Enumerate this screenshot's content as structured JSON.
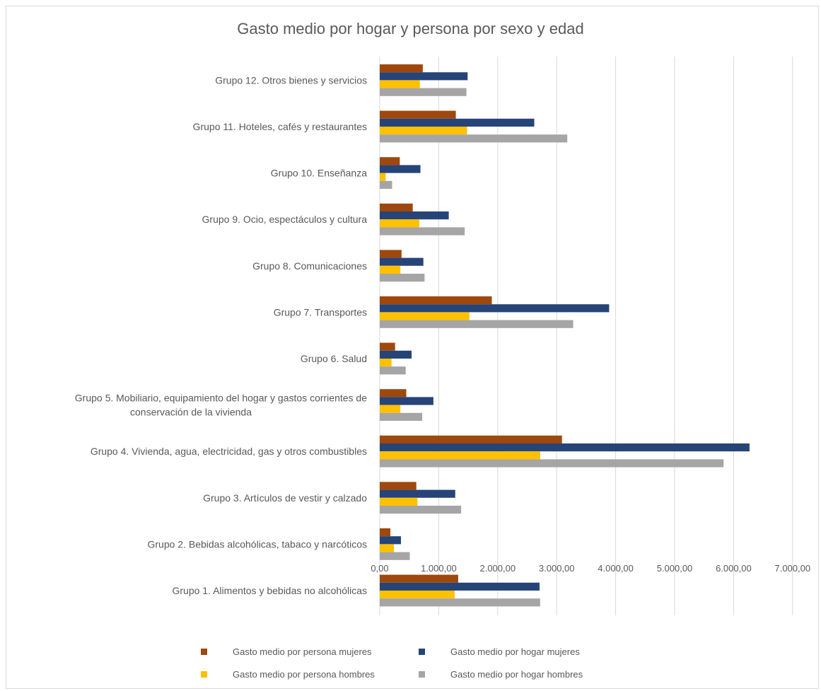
{
  "chart_data": {
    "type": "bar",
    "orientation": "horizontal",
    "title": "Gasto medio por hogar y persona por sexo y edad",
    "xlabel": "",
    "ylabel": "",
    "xlim": [
      0,
      7000
    ],
    "x_ticks": [
      "0,00",
      "1.000,00",
      "2.000,00",
      "3.000,00",
      "4.000,00",
      "5.000,00",
      "6.000,00",
      "7.000,00"
    ],
    "grid": true,
    "legend_position": "bottom",
    "categories": [
      "Grupo 12. Otros bienes y servicios",
      "Grupo 11. Hoteles, cafés y restaurantes",
      "Grupo 10. Enseñanza",
      "Grupo 9. Ocio, espectáculos y cultura",
      "Grupo 8. Comunicaciones",
      "Grupo 7. Transportes",
      "Grupo 6. Salud",
      "Grupo 5. Mobiliario, equipamiento del hogar y gastos corrientes de conservación de la vivienda",
      "Grupo 4. Vivienda, agua, electricidad, gas y otros combustibles",
      "Grupo 3. Artículos de vestir y calzado",
      "Grupo 2. Bebidas alcohólicas, tabaco y narcóticos",
      "Grupo 1. Alimentos y bebidas no alcohólicas"
    ],
    "category_lines": [
      [
        "Grupo 12. Otros bienes y servicios"
      ],
      [
        "Grupo 11. Hoteles, cafés y restaurantes"
      ],
      [
        "Grupo 10. Enseñanza"
      ],
      [
        "Grupo 9. Ocio, espectáculos y cultura"
      ],
      [
        "Grupo 8. Comunicaciones"
      ],
      [
        "Grupo 7. Transportes"
      ],
      [
        "Grupo 6. Salud"
      ],
      [
        "Grupo 5. Mobiliario, equipamiento del hogar y gastos corrientes de",
        "conservación de la vivienda"
      ],
      [
        "Grupo 4. Vivienda, agua, electricidad, gas y otros combustibles"
      ],
      [
        "Grupo 3. Artículos de vestir y calzado"
      ],
      [
        "Grupo 2. Bebidas alcohólicas, tabaco y narcóticos"
      ],
      [
        "Grupo 1. Alimentos y bebidas no alcohólicas"
      ]
    ],
    "series": [
      {
        "name": "Gasto medio por persona mujeres",
        "color": "#9e480e",
        "values": [
          730,
          1290,
          340,
          560,
          370,
          1900,
          260,
          450,
          3090,
          620,
          180,
          1330
        ]
      },
      {
        "name": "Gasto medio por hogar mujeres",
        "color": "#264478",
        "values": [
          1490,
          2620,
          690,
          1170,
          740,
          3890,
          540,
          910,
          6270,
          1280,
          360,
          2710
        ]
      },
      {
        "name": "Gasto medio por persona hombres",
        "color": "#ffc000",
        "values": [
          680,
          1480,
          100,
          670,
          350,
          1520,
          200,
          350,
          2720,
          640,
          240,
          1270
        ]
      },
      {
        "name": "Gasto medio por hogar hombres",
        "color": "#a5a5a5",
        "values": [
          1470,
          3180,
          210,
          1440,
          760,
          3280,
          440,
          720,
          5830,
          1380,
          510,
          2720
        ]
      }
    ]
  }
}
